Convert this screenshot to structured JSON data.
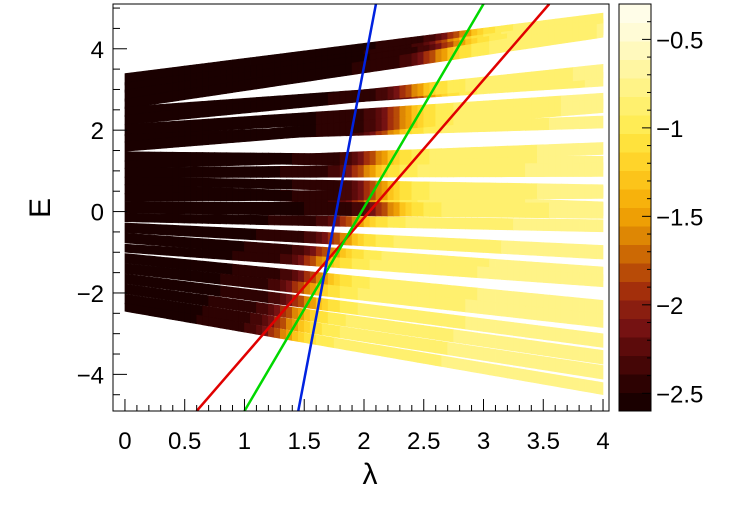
{
  "chart_data": {
    "type": "heatmap",
    "title": "",
    "xlabel": "λ",
    "ylabel": "E",
    "xlim": [
      -0.1,
      4.05
    ],
    "ylim": [
      -4.9,
      5.1
    ],
    "xticks": [
      0,
      0.5,
      1,
      1.5,
      2,
      2.5,
      3,
      3.5,
      4
    ],
    "xtick_labels": [
      "0",
      "0.5",
      "1",
      "1.5",
      "2",
      "2.5",
      "3",
      "3.5",
      "4"
    ],
    "yticks": [
      -4,
      -2,
      0,
      2,
      4
    ],
    "ytick_labels": [
      "−4",
      "−2",
      "0",
      "2",
      "4"
    ],
    "colorbar": {
      "range": [
        -2.6,
        -0.3
      ],
      "ticks": [
        -2.5,
        -2,
        -1.5,
        -1,
        -0.5
      ],
      "tick_labels": [
        "−2.5",
        "−2",
        "−1.5",
        "−1",
        "−0.5"
      ],
      "colors": [
        "#1a0000",
        "#2d0202",
        "#450606",
        "#5c0b0b",
        "#751212",
        "#8a1e10",
        "#a32f0b",
        "#b84b07",
        "#cc6904",
        "#de8704",
        "#ee9f05",
        "#f7b20c",
        "#fcc41a",
        "#ffd42a",
        "#ffe23c",
        "#ffec55",
        "#fff06e",
        "#fff387",
        "#fff6a2",
        "#fff9bd",
        "#fffbd6",
        "#fffde8"
      ]
    },
    "bands": [
      {
        "e0": 3.25,
        "slope": 0.36,
        "w0": 0.14,
        "cutoff": 2.8
      },
      {
        "e0": 3.05,
        "slope": 0.38,
        "w0": 0.12,
        "cutoff": 2.7
      },
      {
        "e0": 2.85,
        "slope": 0.42,
        "w0": 0.14,
        "cutoff": 2.75
      },
      {
        "e0": 2.65,
        "slope": 0.45,
        "w0": 0.12,
        "cutoff": 2.6
      },
      {
        "e0": 2.45,
        "slope": 0.2,
        "w0": 0.12,
        "cutoff": 2.5
      },
      {
        "e0": 2.25,
        "slope": 0.3,
        "w0": 0.12,
        "cutoff": 2.4
      },
      {
        "e0": 2.0,
        "slope": 0.18,
        "w0": 0.14,
        "cutoff": 2.3
      },
      {
        "e0": 1.8,
        "slope": 0.1,
        "w0": 0.1,
        "cutoff": 2.2
      },
      {
        "e0": 1.6,
        "slope": 0.25,
        "w0": 0.12,
        "cutoff": 2.3
      },
      {
        "e0": 1.35,
        "slope": -0.04,
        "w0": 0.12,
        "cutoff": 2.1
      },
      {
        "e0": 1.15,
        "slope": 0.1,
        "w0": 0.1,
        "cutoff": 2.1
      },
      {
        "e0": 0.95,
        "slope": 0.02,
        "w0": 0.12,
        "cutoff": 2.0
      },
      {
        "e0": 0.75,
        "slope": -0.06,
        "w0": 0.1,
        "cutoff": 2.1
      },
      {
        "e0": 0.55,
        "slope": -0.12,
        "w0": 0.12,
        "cutoff": 2.0
      },
      {
        "e0": 0.35,
        "slope": 0.03,
        "w0": 0.1,
        "cutoff": 2.1
      },
      {
        "e0": 0.1,
        "slope": -0.02,
        "w0": 0.14,
        "cutoff": 2.2
      },
      {
        "e0": -0.15,
        "slope": -0.05,
        "w0": 0.1,
        "cutoff": 1.9
      },
      {
        "e0": -0.4,
        "slope": -0.15,
        "w0": 0.12,
        "cutoff": 1.8
      },
      {
        "e0": -0.65,
        "slope": -0.22,
        "w0": 0.12,
        "cutoff": 1.7
      },
      {
        "e0": -0.9,
        "slope": -0.2,
        "w0": 0.1,
        "cutoff": 1.6
      },
      {
        "e0": -1.15,
        "slope": -0.3,
        "w0": 0.12,
        "cutoff": 1.6
      },
      {
        "e0": -1.4,
        "slope": -0.32,
        "w0": 0.12,
        "cutoff": 1.5
      },
      {
        "e0": -1.65,
        "slope": -0.38,
        "w0": 0.12,
        "cutoff": 1.5
      },
      {
        "e0": -1.9,
        "slope": -0.42,
        "w0": 0.12,
        "cutoff": 1.4
      },
      {
        "e0": -2.15,
        "slope": -0.45,
        "w0": 0.12,
        "cutoff": 1.35
      },
      {
        "e0": -2.35,
        "slope": -0.5,
        "w0": 0.1,
        "cutoff": 1.3
      }
    ],
    "lines": [
      {
        "color": "#e00000",
        "points": [
          [
            0.6,
            -4.9
          ],
          [
            3.55,
            5.1
          ]
        ]
      },
      {
        "color": "#00d800",
        "points": [
          [
            1.0,
            -4.9
          ],
          [
            3.0,
            5.1
          ]
        ]
      },
      {
        "color": "#0022e0",
        "points": [
          [
            1.45,
            -4.9
          ],
          [
            2.1,
            5.1
          ]
        ]
      }
    ]
  }
}
